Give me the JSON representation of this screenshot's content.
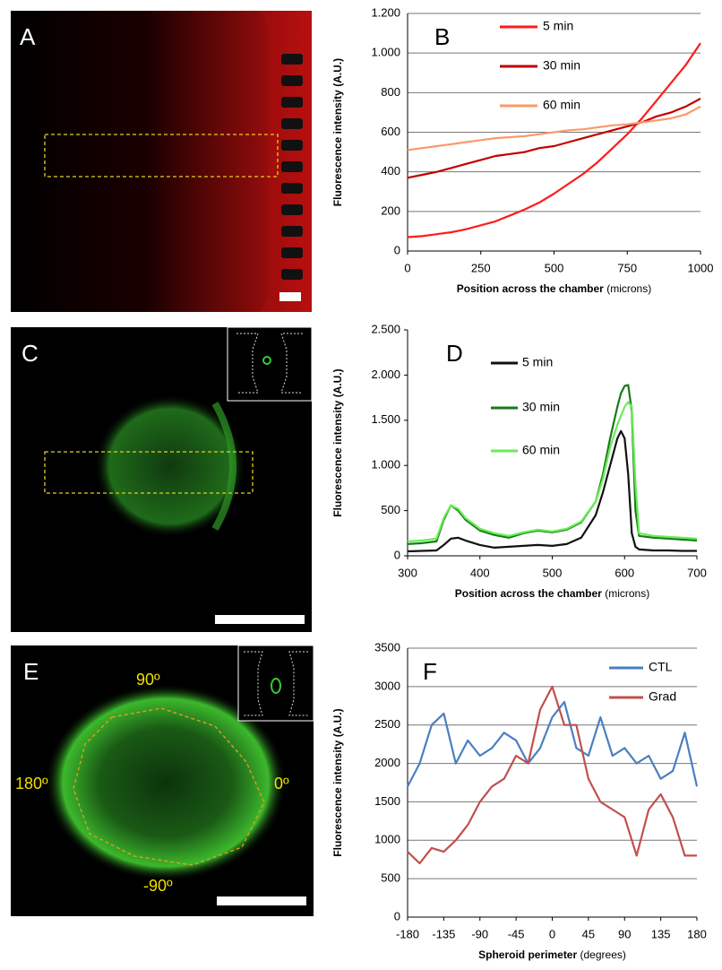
{
  "images": [
    {
      "label": "A"
    },
    {
      "label": "C"
    },
    {
      "label": "E",
      "annotations": [
        "90º",
        "180º",
        "0º",
        "-90º"
      ]
    }
  ],
  "chart_data": [
    {
      "type": "line",
      "label": "B",
      "y_label": "Fluorescence intensity (A.U.)",
      "x_label": "Position across the chamber",
      "x_label_unit": "(microns)",
      "xlim": [
        0,
        1000
      ],
      "xticks": [
        0,
        250,
        500,
        750,
        1000
      ],
      "ylim": [
        0,
        1200
      ],
      "yticks": [
        0,
        200,
        400,
        600,
        800,
        {
          "value": 1000,
          "label": "1.000"
        },
        {
          "value": 1200,
          "label": "1.200"
        }
      ],
      "grid": true,
      "x": [
        0,
        50,
        100,
        150,
        200,
        250,
        300,
        350,
        400,
        450,
        500,
        550,
        600,
        650,
        700,
        750,
        800,
        850,
        900,
        950,
        1000
      ],
      "series": [
        {
          "name": "5 min",
          "color": "#ff1a1a",
          "values": [
            70,
            75,
            85,
            95,
            110,
            130,
            150,
            180,
            210,
            245,
            290,
            340,
            390,
            450,
            520,
            590,
            670,
            760,
            850,
            940,
            1050
          ]
        },
        {
          "name": "30 min",
          "color": "#c00000",
          "values": [
            370,
            385,
            400,
            420,
            440,
            460,
            480,
            490,
            500,
            520,
            530,
            550,
            570,
            590,
            610,
            630,
            650,
            680,
            700,
            730,
            770
          ]
        },
        {
          "name": "60 min",
          "color": "#fa9a6a",
          "values": [
            510,
            520,
            530,
            540,
            550,
            560,
            570,
            575,
            580,
            590,
            600,
            610,
            615,
            625,
            635,
            640,
            650,
            660,
            670,
            690,
            730
          ]
        }
      ]
    },
    {
      "type": "line",
      "label": "D",
      "y_label": "Fluorescence intensity (A.U.)",
      "x_label": "Position across the chamber",
      "x_label_unit": "(microns)",
      "xlim": [
        300,
        700
      ],
      "xticks": [
        300,
        400,
        500,
        600,
        700
      ],
      "ylim": [
        0,
        2500
      ],
      "yticks": [
        0,
        500,
        {
          "value": 1000,
          "label": "1.000"
        },
        {
          "value": 1500,
          "label": "1.500"
        },
        {
          "value": 2000,
          "label": "2.000"
        },
        {
          "value": 2500,
          "label": "2.500"
        }
      ],
      "grid": false,
      "x": [
        300,
        320,
        340,
        350,
        360,
        370,
        380,
        400,
        420,
        440,
        460,
        480,
        500,
        520,
        540,
        560,
        570,
        580,
        590,
        595,
        600,
        605,
        610,
        615,
        620,
        640,
        660,
        680,
        700
      ],
      "series": [
        {
          "name": "5 min",
          "color": "#111111",
          "values": [
            50,
            55,
            60,
            120,
            190,
            200,
            170,
            120,
            90,
            100,
            110,
            120,
            110,
            130,
            200,
            450,
            700,
            1000,
            1300,
            1380,
            1300,
            900,
            250,
            100,
            70,
            60,
            60,
            55,
            55
          ]
        },
        {
          "name": "30 min",
          "color": "#1a7a1a",
          "values": [
            130,
            140,
            160,
            400,
            560,
            500,
            400,
            280,
            230,
            200,
            250,
            280,
            260,
            290,
            370,
            600,
            900,
            1300,
            1650,
            1800,
            1880,
            1890,
            1600,
            500,
            220,
            200,
            190,
            180,
            170
          ]
        },
        {
          "name": "60 min",
          "color": "#66ee55",
          "values": [
            160,
            170,
            190,
            420,
            560,
            520,
            420,
            300,
            250,
            220,
            260,
            290,
            270,
            300,
            380,
            600,
            850,
            1200,
            1450,
            1550,
            1650,
            1700,
            1650,
            800,
            250,
            220,
            210,
            200,
            190
          ]
        }
      ]
    },
    {
      "type": "line",
      "label": "F",
      "y_label": "Fluorescence intensity (A.U.)",
      "x_label": "Spheroid perimeter",
      "x_label_unit": "(degrees)",
      "xlim": [
        -180,
        180
      ],
      "xticks": [
        -180,
        -135,
        -90,
        -45,
        0,
        45,
        90,
        135,
        180
      ],
      "ylim": [
        0,
        3500
      ],
      "yticks": [
        0,
        500,
        1000,
        1500,
        2000,
        2500,
        3000,
        3500
      ],
      "grid": true,
      "x": [
        -180,
        -165,
        -150,
        -135,
        -120,
        -105,
        -90,
        -75,
        -60,
        -45,
        -30,
        -15,
        0,
        15,
        30,
        45,
        60,
        75,
        90,
        105,
        120,
        135,
        150,
        165,
        180
      ],
      "series": [
        {
          "name": "CTL",
          "color": "#4a7fc1",
          "values": [
            1700,
            2000,
            2500,
            2650,
            2000,
            2300,
            2100,
            2200,
            2400,
            2300,
            2000,
            2200,
            2600,
            2800,
            2200,
            2100,
            2600,
            2100,
            2200,
            2000,
            2100,
            1800,
            1900,
            2400,
            1700
          ]
        },
        {
          "name": "Grad",
          "color": "#c0504d",
          "values": [
            850,
            700,
            900,
            850,
            1000,
            1200,
            1500,
            1700,
            1800,
            2100,
            2000,
            2700,
            3000,
            2500,
            2500,
            1800,
            1500,
            1400,
            1300,
            800,
            1400,
            1600,
            1300,
            800,
            800
          ]
        }
      ]
    }
  ]
}
